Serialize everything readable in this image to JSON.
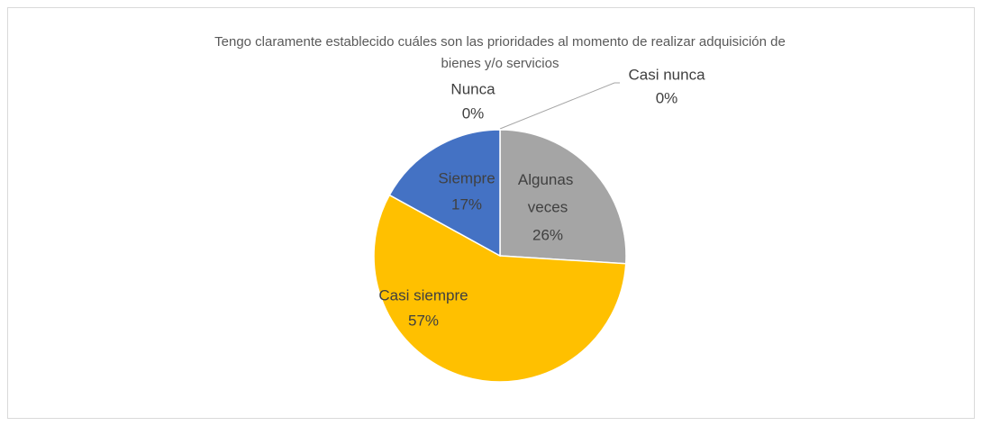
{
  "chart_data": {
    "type": "pie",
    "title": [
      "Tengo claramente establecido cuáles son las prioridades al momento de realizar adquisición de",
      "bienes y/o servicios"
    ],
    "categories": [
      "Nunca",
      "Casi nunca",
      "Algunas veces",
      "Casi siempre",
      "Siempre"
    ],
    "values": [
      0,
      0,
      26,
      57,
      17
    ],
    "value_labels": [
      "0%",
      "0%",
      "26%",
      "57%",
      "17%"
    ],
    "colors": [
      "#4472c4",
      "#ed7d31",
      "#a5a5a5",
      "#ffc000",
      "#4472c4"
    ]
  }
}
